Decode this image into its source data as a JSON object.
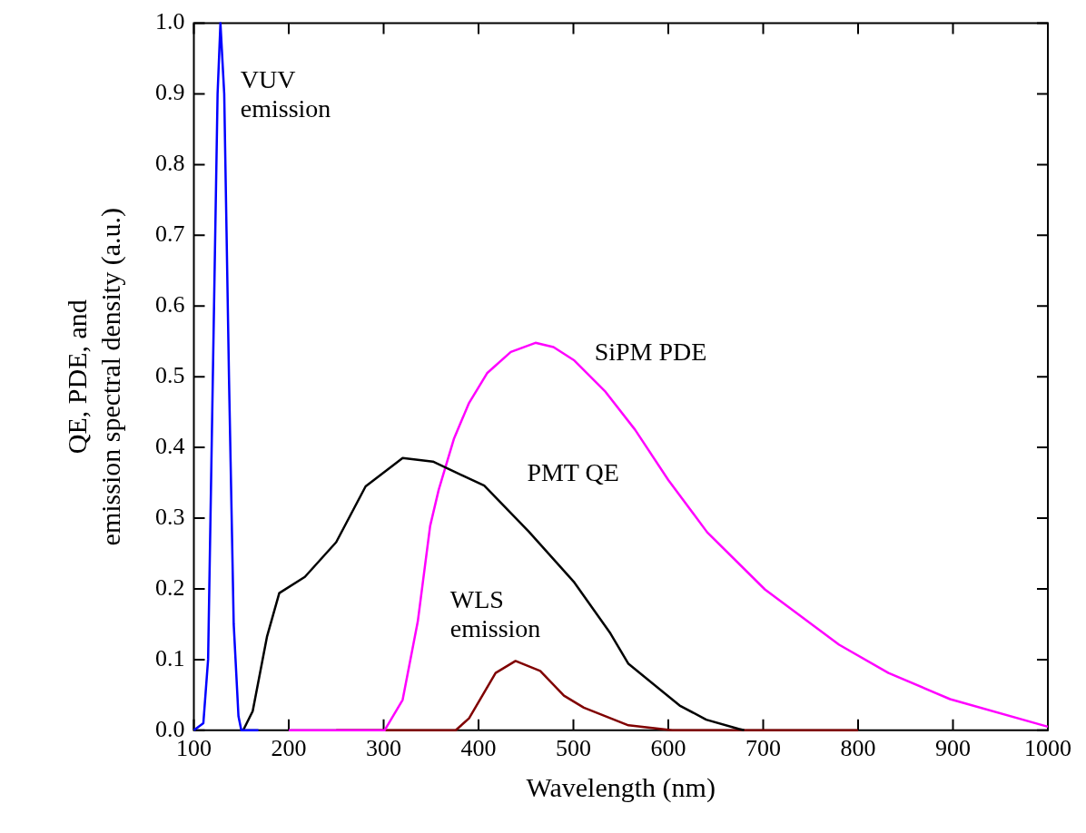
{
  "chart_data": {
    "type": "line",
    "xlabel": "Wavelength (nm)",
    "ylabel": "QE, PDE, and emission spectral density (a.u.)",
    "xlim": [
      100,
      1000
    ],
    "xticks": [
      100,
      200,
      300,
      400,
      500,
      600,
      700,
      800,
      900,
      1000
    ],
    "ylim": [
      0,
      1
    ],
    "yticks": [
      {
        "value": 0,
        "label": "0.0"
      },
      {
        "value": 0.1,
        "label": "0.1"
      },
      {
        "value": 0.2,
        "label": "0.2"
      },
      {
        "value": 0.3,
        "label": "0.3"
      },
      {
        "value": 0.4,
        "label": "0.4"
      },
      {
        "value": 0.5,
        "label": "0.5"
      },
      {
        "value": 0.6,
        "label": "0.6"
      },
      {
        "value": 0.7,
        "label": "0.7"
      },
      {
        "value": 0.8,
        "label": "0.8"
      },
      {
        "value": 0.9,
        "label": "0.9"
      },
      {
        "value": 1,
        "label": "1.0"
      }
    ],
    "grid": false,
    "legend": false,
    "marker": "none",
    "line_style": "solid",
    "series": [
      {
        "name": "VUV emission",
        "color": "#0000ff",
        "x": [
          100,
          110,
          115,
          120,
          125,
          128,
          132,
          137,
          142,
          147,
          150,
          168
        ],
        "values": [
          0,
          0.01,
          0.1,
          0.5,
          0.9,
          1.0,
          0.9,
          0.5,
          0.15,
          0.02,
          0,
          0
        ]
      },
      {
        "name": "PMT QE",
        "color": "#000000",
        "x": [
          152,
          162,
          177,
          190,
          217,
          250,
          281,
          320,
          352,
          406,
          453,
          501,
          539,
          558,
          612,
          640,
          674,
          680
        ],
        "values": [
          0,
          0.027,
          0.132,
          0.194,
          0.217,
          0.266,
          0.345,
          0.385,
          0.38,
          0.346,
          0.281,
          0.209,
          0.137,
          0.094,
          0.035,
          0.015,
          0.002,
          0
        ]
      },
      {
        "name": "SiPM PDE",
        "color": "#ff00ff",
        "x": [
          200,
          301,
          320,
          336,
          349,
          358,
          374,
          390,
          409,
          434,
          460,
          479,
          501,
          533,
          565,
          600,
          641,
          702,
          780,
          832,
          897,
          1000
        ],
        "values": [
          0,
          0,
          0.043,
          0.154,
          0.289,
          0.34,
          0.412,
          0.463,
          0.505,
          0.535,
          0.548,
          0.542,
          0.523,
          0.48,
          0.425,
          0.354,
          0.28,
          0.199,
          0.121,
          0.081,
          0.044,
          0.005
        ]
      },
      {
        "name": "WLS emission",
        "color": "#800000",
        "x": [
          250,
          376,
          390,
          418,
          439,
          465,
          490,
          511,
          558,
          604,
          800
        ],
        "values": [
          0,
          0,
          0.017,
          0.081,
          0.098,
          0.084,
          0.049,
          0.032,
          0.007,
          0,
          0
        ]
      }
    ]
  }
}
